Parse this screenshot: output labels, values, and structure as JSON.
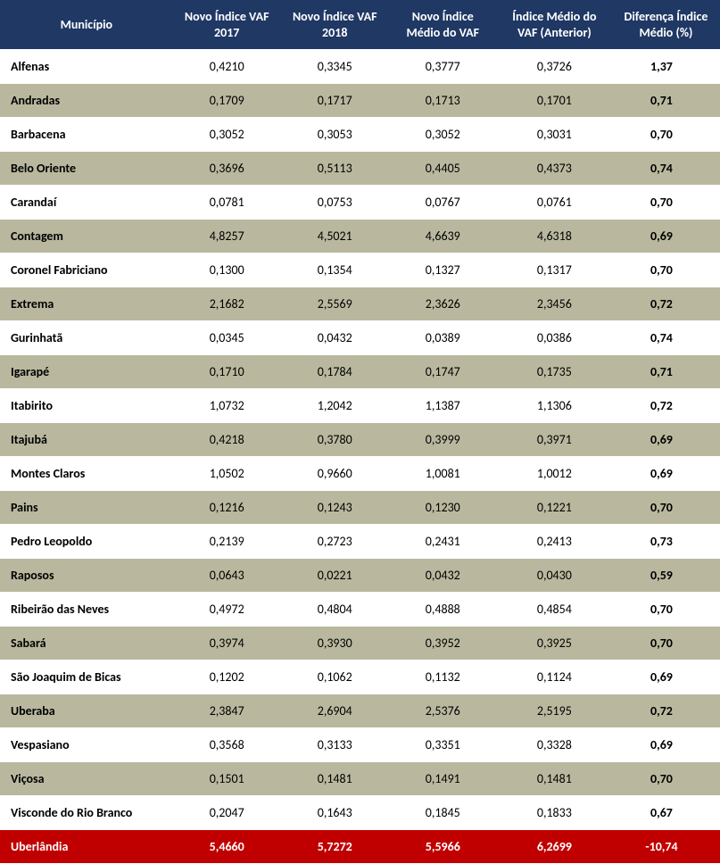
{
  "table": {
    "header_bg": "#1f3864",
    "header_fg": "#ffffff",
    "row_even_bg": "#b9b89e",
    "row_odd_bg": "#ffffff",
    "highlight_bg": "#c00000",
    "highlight_fg": "#ffffff",
    "columns": [
      {
        "key": "mun",
        "label": "Município"
      },
      {
        "key": "v2017",
        "label": "Novo Índice VAF 2017"
      },
      {
        "key": "v2018",
        "label": "Novo Índice VAF 2018"
      },
      {
        "key": "vmed",
        "label": "Novo Índice Médio do VAF"
      },
      {
        "key": "vant",
        "label": "Índice Médio do VAF (Anterior)"
      },
      {
        "key": "diff",
        "label": "Diferença Índice Médio (%)"
      }
    ],
    "rows": [
      {
        "mun": "Alfenas",
        "v2017": "0,4210",
        "v2018": "0,3345",
        "vmed": "0,3777",
        "vant": "0,3726",
        "diff": "1,37",
        "highlight": false
      },
      {
        "mun": "Andradas",
        "v2017": "0,1709",
        "v2018": "0,1717",
        "vmed": "0,1713",
        "vant": "0,1701",
        "diff": "0,71",
        "highlight": false
      },
      {
        "mun": "Barbacena",
        "v2017": "0,3052",
        "v2018": "0,3053",
        "vmed": "0,3052",
        "vant": "0,3031",
        "diff": "0,70",
        "highlight": false
      },
      {
        "mun": "Belo Oriente",
        "v2017": "0,3696",
        "v2018": "0,5113",
        "vmed": "0,4405",
        "vant": "0,4373",
        "diff": "0,74",
        "highlight": false
      },
      {
        "mun": "Carandaí",
        "v2017": "0,0781",
        "v2018": "0,0753",
        "vmed": "0,0767",
        "vant": "0,0761",
        "diff": "0,70",
        "highlight": false
      },
      {
        "mun": "Contagem",
        "v2017": "4,8257",
        "v2018": "4,5021",
        "vmed": "4,6639",
        "vant": "4,6318",
        "diff": "0,69",
        "highlight": false
      },
      {
        "mun": "Coronel Fabriciano",
        "v2017": "0,1300",
        "v2018": "0,1354",
        "vmed": "0,1327",
        "vant": "0,1317",
        "diff": "0,70",
        "highlight": false
      },
      {
        "mun": "Extrema",
        "v2017": "2,1682",
        "v2018": "2,5569",
        "vmed": "2,3626",
        "vant": "2,3456",
        "diff": "0,72",
        "highlight": false
      },
      {
        "mun": "Gurinhatã",
        "v2017": "0,0345",
        "v2018": "0,0432",
        "vmed": "0,0389",
        "vant": "0,0386",
        "diff": "0,74",
        "highlight": false
      },
      {
        "mun": "Igarapé",
        "v2017": "0,1710",
        "v2018": "0,1784",
        "vmed": "0,1747",
        "vant": "0,1735",
        "diff": "0,71",
        "highlight": false
      },
      {
        "mun": "Itabirito",
        "v2017": "1,0732",
        "v2018": "1,2042",
        "vmed": "1,1387",
        "vant": "1,1306",
        "diff": "0,72",
        "highlight": false
      },
      {
        "mun": "Itajubá",
        "v2017": "0,4218",
        "v2018": "0,3780",
        "vmed": "0,3999",
        "vant": "0,3971",
        "diff": "0,69",
        "highlight": false
      },
      {
        "mun": "Montes Claros",
        "v2017": "1,0502",
        "v2018": "0,9660",
        "vmed": "1,0081",
        "vant": "1,0012",
        "diff": "0,69",
        "highlight": false
      },
      {
        "mun": "Pains",
        "v2017": "0,1216",
        "v2018": "0,1243",
        "vmed": "0,1230",
        "vant": "0,1221",
        "diff": "0,70",
        "highlight": false
      },
      {
        "mun": "Pedro Leopoldo",
        "v2017": "0,2139",
        "v2018": "0,2723",
        "vmed": "0,2431",
        "vant": "0,2413",
        "diff": "0,73",
        "highlight": false
      },
      {
        "mun": "Raposos",
        "v2017": "0,0643",
        "v2018": "0,0221",
        "vmed": "0,0432",
        "vant": "0,0430",
        "diff": "0,59",
        "highlight": false
      },
      {
        "mun": "Ribeirão das Neves",
        "v2017": "0,4972",
        "v2018": "0,4804",
        "vmed": "0,4888",
        "vant": "0,4854",
        "diff": "0,70",
        "highlight": false
      },
      {
        "mun": "Sabará",
        "v2017": "0,3974",
        "v2018": "0,3930",
        "vmed": "0,3952",
        "vant": "0,3925",
        "diff": "0,70",
        "highlight": false
      },
      {
        "mun": "São Joaquim de Bicas",
        "v2017": "0,1202",
        "v2018": "0,1062",
        "vmed": "0,1132",
        "vant": "0,1124",
        "diff": "0,69",
        "highlight": false
      },
      {
        "mun": "Uberaba",
        "v2017": "2,3847",
        "v2018": "2,6904",
        "vmed": "2,5376",
        "vant": "2,5195",
        "diff": "0,72",
        "highlight": false
      },
      {
        "mun": "Vespasiano",
        "v2017": "0,3568",
        "v2018": "0,3133",
        "vmed": "0,3351",
        "vant": "0,3328",
        "diff": "0,69",
        "highlight": false
      },
      {
        "mun": "Viçosa",
        "v2017": "0,1501",
        "v2018": "0,1481",
        "vmed": "0,1491",
        "vant": "0,1481",
        "diff": "0,70",
        "highlight": false
      },
      {
        "mun": "Visconde do Rio Branco",
        "v2017": "0,2047",
        "v2018": "0,1643",
        "vmed": "0,1845",
        "vant": "0,1833",
        "diff": "0,67",
        "highlight": false
      },
      {
        "mun": "Uberlândia",
        "v2017": "5,4660",
        "v2018": "5,7272",
        "vmed": "5,5966",
        "vant": "6,2699",
        "diff": "-10,74",
        "highlight": true
      }
    ]
  }
}
